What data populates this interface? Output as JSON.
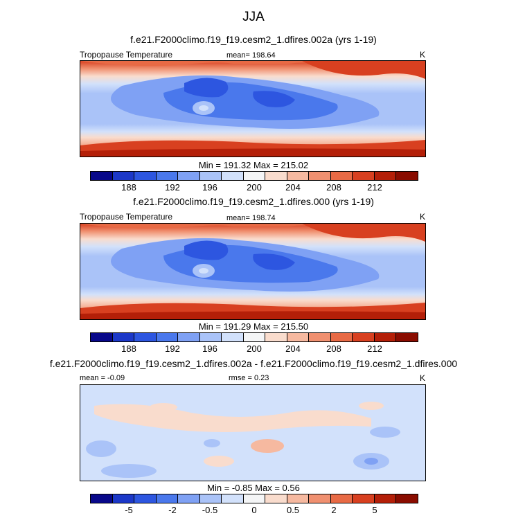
{
  "title": "JJA",
  "panels": [
    {
      "subtitle": "f.e21.F2000climo.f19_f19.cesm2_1.dfires.002a (yrs 1-19)",
      "left_label": "Tropopause Temperature",
      "mean_label": "mean= 198.64",
      "units": "K",
      "minmax": "Min = 191.32 Max = 215.02"
    },
    {
      "subtitle": "f.e21.F2000climo.f19_f19.cesm2_1.dfires.000 (yrs 1-19)",
      "left_label": "Tropopause Temperature",
      "mean_label": "mean= 198.74",
      "units": "K",
      "minmax": "Min = 191.29 Max = 215.50"
    },
    {
      "subtitle": "f.e21.F2000climo.f19_f19.cesm2_1.dfires.002a - f.e21.F2000climo.f19_f19.cesm2_1.dfires.000",
      "left_label": "mean = -0.09",
      "mean_label": "rmse = 0.23",
      "units": "K",
      "minmax": "Min = -0.85 Max = 0.56"
    }
  ],
  "chart_data": [
    {
      "type": "heatmap",
      "title": "f.e21.F2000climo.f19_f19.cesm2_1.dfires.002a (yrs 1-19)",
      "variable": "Tropopause Temperature",
      "units": "K",
      "mean": 198.64,
      "min": 191.32,
      "max": 215.02,
      "colorbar_ticks": [
        "188",
        "192",
        "196",
        "200",
        "204",
        "208",
        "212"
      ],
      "colorbar_colors": [
        "#08088a",
        "#1c38c8",
        "#2d56e0",
        "#4a78ec",
        "#7fa1f4",
        "#aac3f8",
        "#d2e1fb",
        "#f4f5f6",
        "#f9dccd",
        "#f6b9a0",
        "#f09070",
        "#e86a45",
        "#d84020",
        "#b41f08",
        "#8a0c00"
      ]
    },
    {
      "type": "heatmap",
      "title": "f.e21.F2000climo.f19_f19.cesm2_1.dfires.000 (yrs 1-19)",
      "variable": "Tropopause Temperature",
      "units": "K",
      "mean": 198.74,
      "min": 191.29,
      "max": 215.5,
      "colorbar_ticks": [
        "188",
        "192",
        "196",
        "200",
        "204",
        "208",
        "212"
      ],
      "colorbar_colors": [
        "#08088a",
        "#1c38c8",
        "#2d56e0",
        "#4a78ec",
        "#7fa1f4",
        "#aac3f8",
        "#d2e1fb",
        "#f4f5f6",
        "#f9dccd",
        "#f6b9a0",
        "#f09070",
        "#e86a45",
        "#d84020",
        "#b41f08",
        "#8a0c00"
      ]
    },
    {
      "type": "heatmap",
      "title": "f.e21.F2000climo.f19_f19.cesm2_1.dfires.002a - f.e21.F2000climo.f19_f19.cesm2_1.dfires.000",
      "units": "K",
      "mean": -0.09,
      "rmse": 0.23,
      "min": -0.85,
      "max": 0.56,
      "colorbar_ticks": [
        "-5",
        "-2",
        "-0.5",
        "0",
        "0.5",
        "2",
        "5"
      ],
      "colorbar_colors": [
        "#08088a",
        "#1c38c8",
        "#2d56e0",
        "#4a78ec",
        "#7fa1f4",
        "#aac3f8",
        "#d2e1fb",
        "#f4f5f6",
        "#f9dccd",
        "#f6b9a0",
        "#f09070",
        "#e86a45",
        "#d84020",
        "#b41f08",
        "#8a0c00"
      ]
    }
  ]
}
